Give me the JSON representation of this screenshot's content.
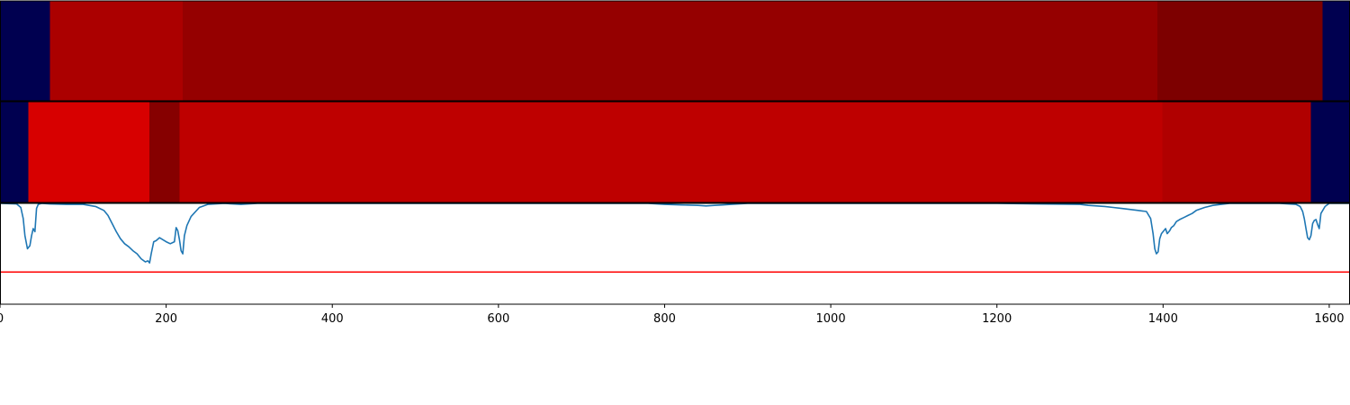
{
  "chart_data": [
    {
      "type": "heatmap",
      "segments": [
        {
          "start": 0,
          "end": 60,
          "color": "#000050"
        },
        {
          "start": 60,
          "end": 220,
          "color": "#ab0000"
        },
        {
          "start": 220,
          "end": 1393,
          "color": "#950000"
        },
        {
          "start": 1393,
          "end": 1592,
          "color": "#7d0000"
        },
        {
          "start": 1592,
          "end": 1625,
          "color": "#000050"
        }
      ]
    },
    {
      "type": "heatmap",
      "segments": [
        {
          "start": 0,
          "end": 34,
          "color": "#000050"
        },
        {
          "start": 34,
          "end": 180,
          "color": "#d70000"
        },
        {
          "start": 180,
          "end": 216,
          "color": "#860000"
        },
        {
          "start": 216,
          "end": 1399,
          "color": "#be0000"
        },
        {
          "start": 1399,
          "end": 1578,
          "color": "#b00000"
        },
        {
          "start": 1578,
          "end": 1625,
          "color": "#000050"
        }
      ]
    },
    {
      "type": "line",
      "xlim": [
        0,
        1625
      ],
      "ylim": [
        0,
        1
      ],
      "x_ticks": [
        0,
        200,
        400,
        600,
        800,
        1000,
        1200,
        1400,
        1600
      ],
      "x_tick_labels": [
        "0",
        "200",
        "400",
        "600",
        "800",
        "1000",
        "1200",
        "1400",
        "1600"
      ],
      "grid": false,
      "series": [
        {
          "color": "#1f77b4",
          "x": [
            0,
            20,
            25,
            28,
            30,
            33,
            36,
            38,
            40,
            42,
            44,
            46,
            50,
            60,
            80,
            100,
            115,
            125,
            130,
            135,
            140,
            145,
            150,
            155,
            160,
            165,
            170,
            175,
            178,
            180,
            182,
            185,
            188,
            192,
            196,
            200,
            205,
            210,
            212,
            214,
            216,
            218,
            220,
            222,
            225,
            230,
            240,
            250,
            270,
            290,
            310,
            350,
            400,
            500,
            600,
            700,
            780,
            800,
            820,
            840,
            850,
            860,
            870,
            880,
            900,
            920,
            950,
            1000,
            1100,
            1200,
            1300,
            1310,
            1320,
            1330,
            1340,
            1350,
            1360,
            1370,
            1380,
            1385,
            1388,
            1390,
            1392,
            1394,
            1396,
            1398,
            1400,
            1403,
            1405,
            1408,
            1410,
            1413,
            1416,
            1420,
            1425,
            1430,
            1435,
            1440,
            1450,
            1460,
            1470,
            1480,
            1500,
            1520,
            1540,
            1560,
            1565,
            1568,
            1570,
            1572,
            1574,
            1576,
            1578,
            1580,
            1582,
            1584,
            1586,
            1588,
            1590,
            1595,
            1600,
            1625
          ],
          "y": [
            1.0,
            0.995,
            0.96,
            0.85,
            0.68,
            0.55,
            0.58,
            0.68,
            0.75,
            0.72,
            0.95,
            0.99,
            1.0,
            0.995,
            0.99,
            0.99,
            0.97,
            0.93,
            0.88,
            0.8,
            0.72,
            0.65,
            0.6,
            0.57,
            0.53,
            0.5,
            0.45,
            0.42,
            0.43,
            0.41,
            0.5,
            0.62,
            0.63,
            0.66,
            0.64,
            0.62,
            0.6,
            0.62,
            0.76,
            0.73,
            0.64,
            0.53,
            0.5,
            0.68,
            0.78,
            0.87,
            0.96,
            0.99,
            1.0,
            0.99,
            1.0,
            1.0,
            1.0,
            1.0,
            1.0,
            1.0,
            1.0,
            0.99,
            0.985,
            0.98,
            0.975,
            0.98,
            0.985,
            0.99,
            1.0,
            1.0,
            1.0,
            1.0,
            1.0,
            1.0,
            0.99,
            0.98,
            0.975,
            0.97,
            0.96,
            0.95,
            0.94,
            0.93,
            0.92,
            0.85,
            0.7,
            0.55,
            0.5,
            0.52,
            0.65,
            0.7,
            0.72,
            0.75,
            0.7,
            0.73,
            0.76,
            0.78,
            0.82,
            0.84,
            0.86,
            0.88,
            0.9,
            0.93,
            0.96,
            0.98,
            0.99,
            1.0,
            1.0,
            1.0,
            1.0,
            0.99,
            0.97,
            0.92,
            0.85,
            0.75,
            0.66,
            0.64,
            0.68,
            0.8,
            0.83,
            0.84,
            0.79,
            0.75,
            0.9,
            0.97,
            1.0,
            1.0
          ]
        },
        {
          "color": "#ff0000",
          "x": [
            0,
            1625
          ],
          "y": [
            0.32,
            0.32
          ]
        }
      ]
    }
  ]
}
